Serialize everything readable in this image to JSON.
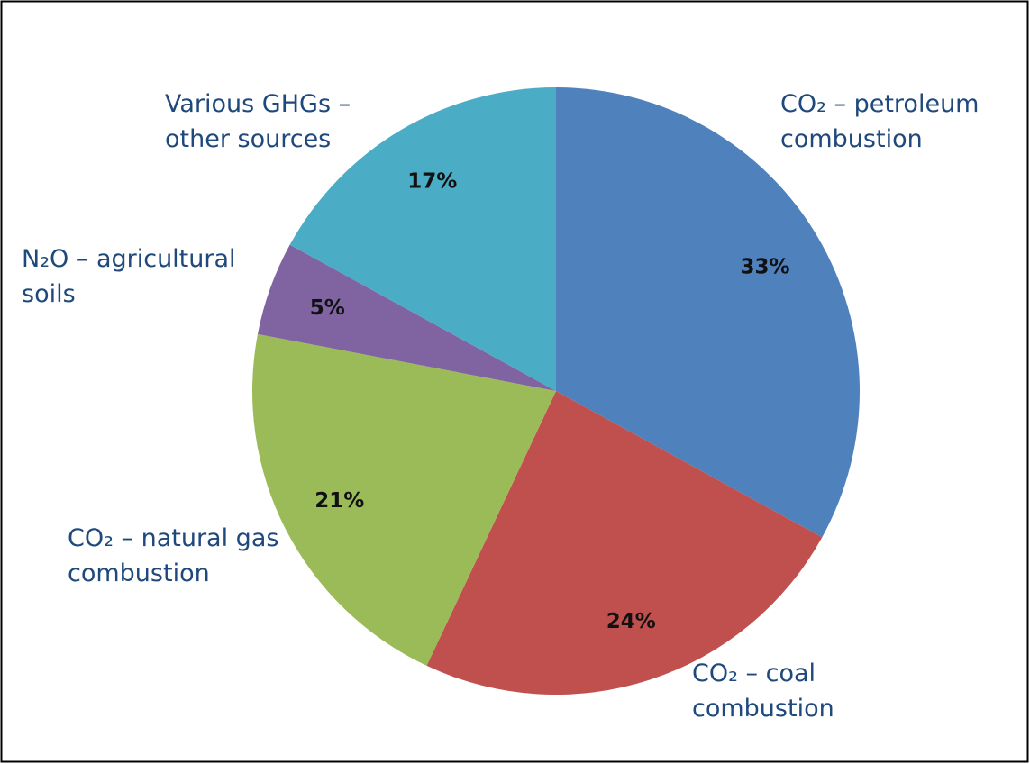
{
  "chart_data": {
    "type": "pie",
    "categories": [
      "CO₂ – petroleum combustion",
      "CO₂ – coal combustion",
      "CO₂ – natural gas combustion",
      "N₂O – agricultural soils",
      "Various GHGs – other sources"
    ],
    "values": [
      33,
      24,
      21,
      5,
      17
    ],
    "value_labels": [
      "33%",
      "24%",
      "21%",
      "5%",
      "17%"
    ],
    "colors": [
      "#4f81bd",
      "#c0504d",
      "#9bbb59",
      "#8064a2",
      "#4bacc6"
    ]
  }
}
